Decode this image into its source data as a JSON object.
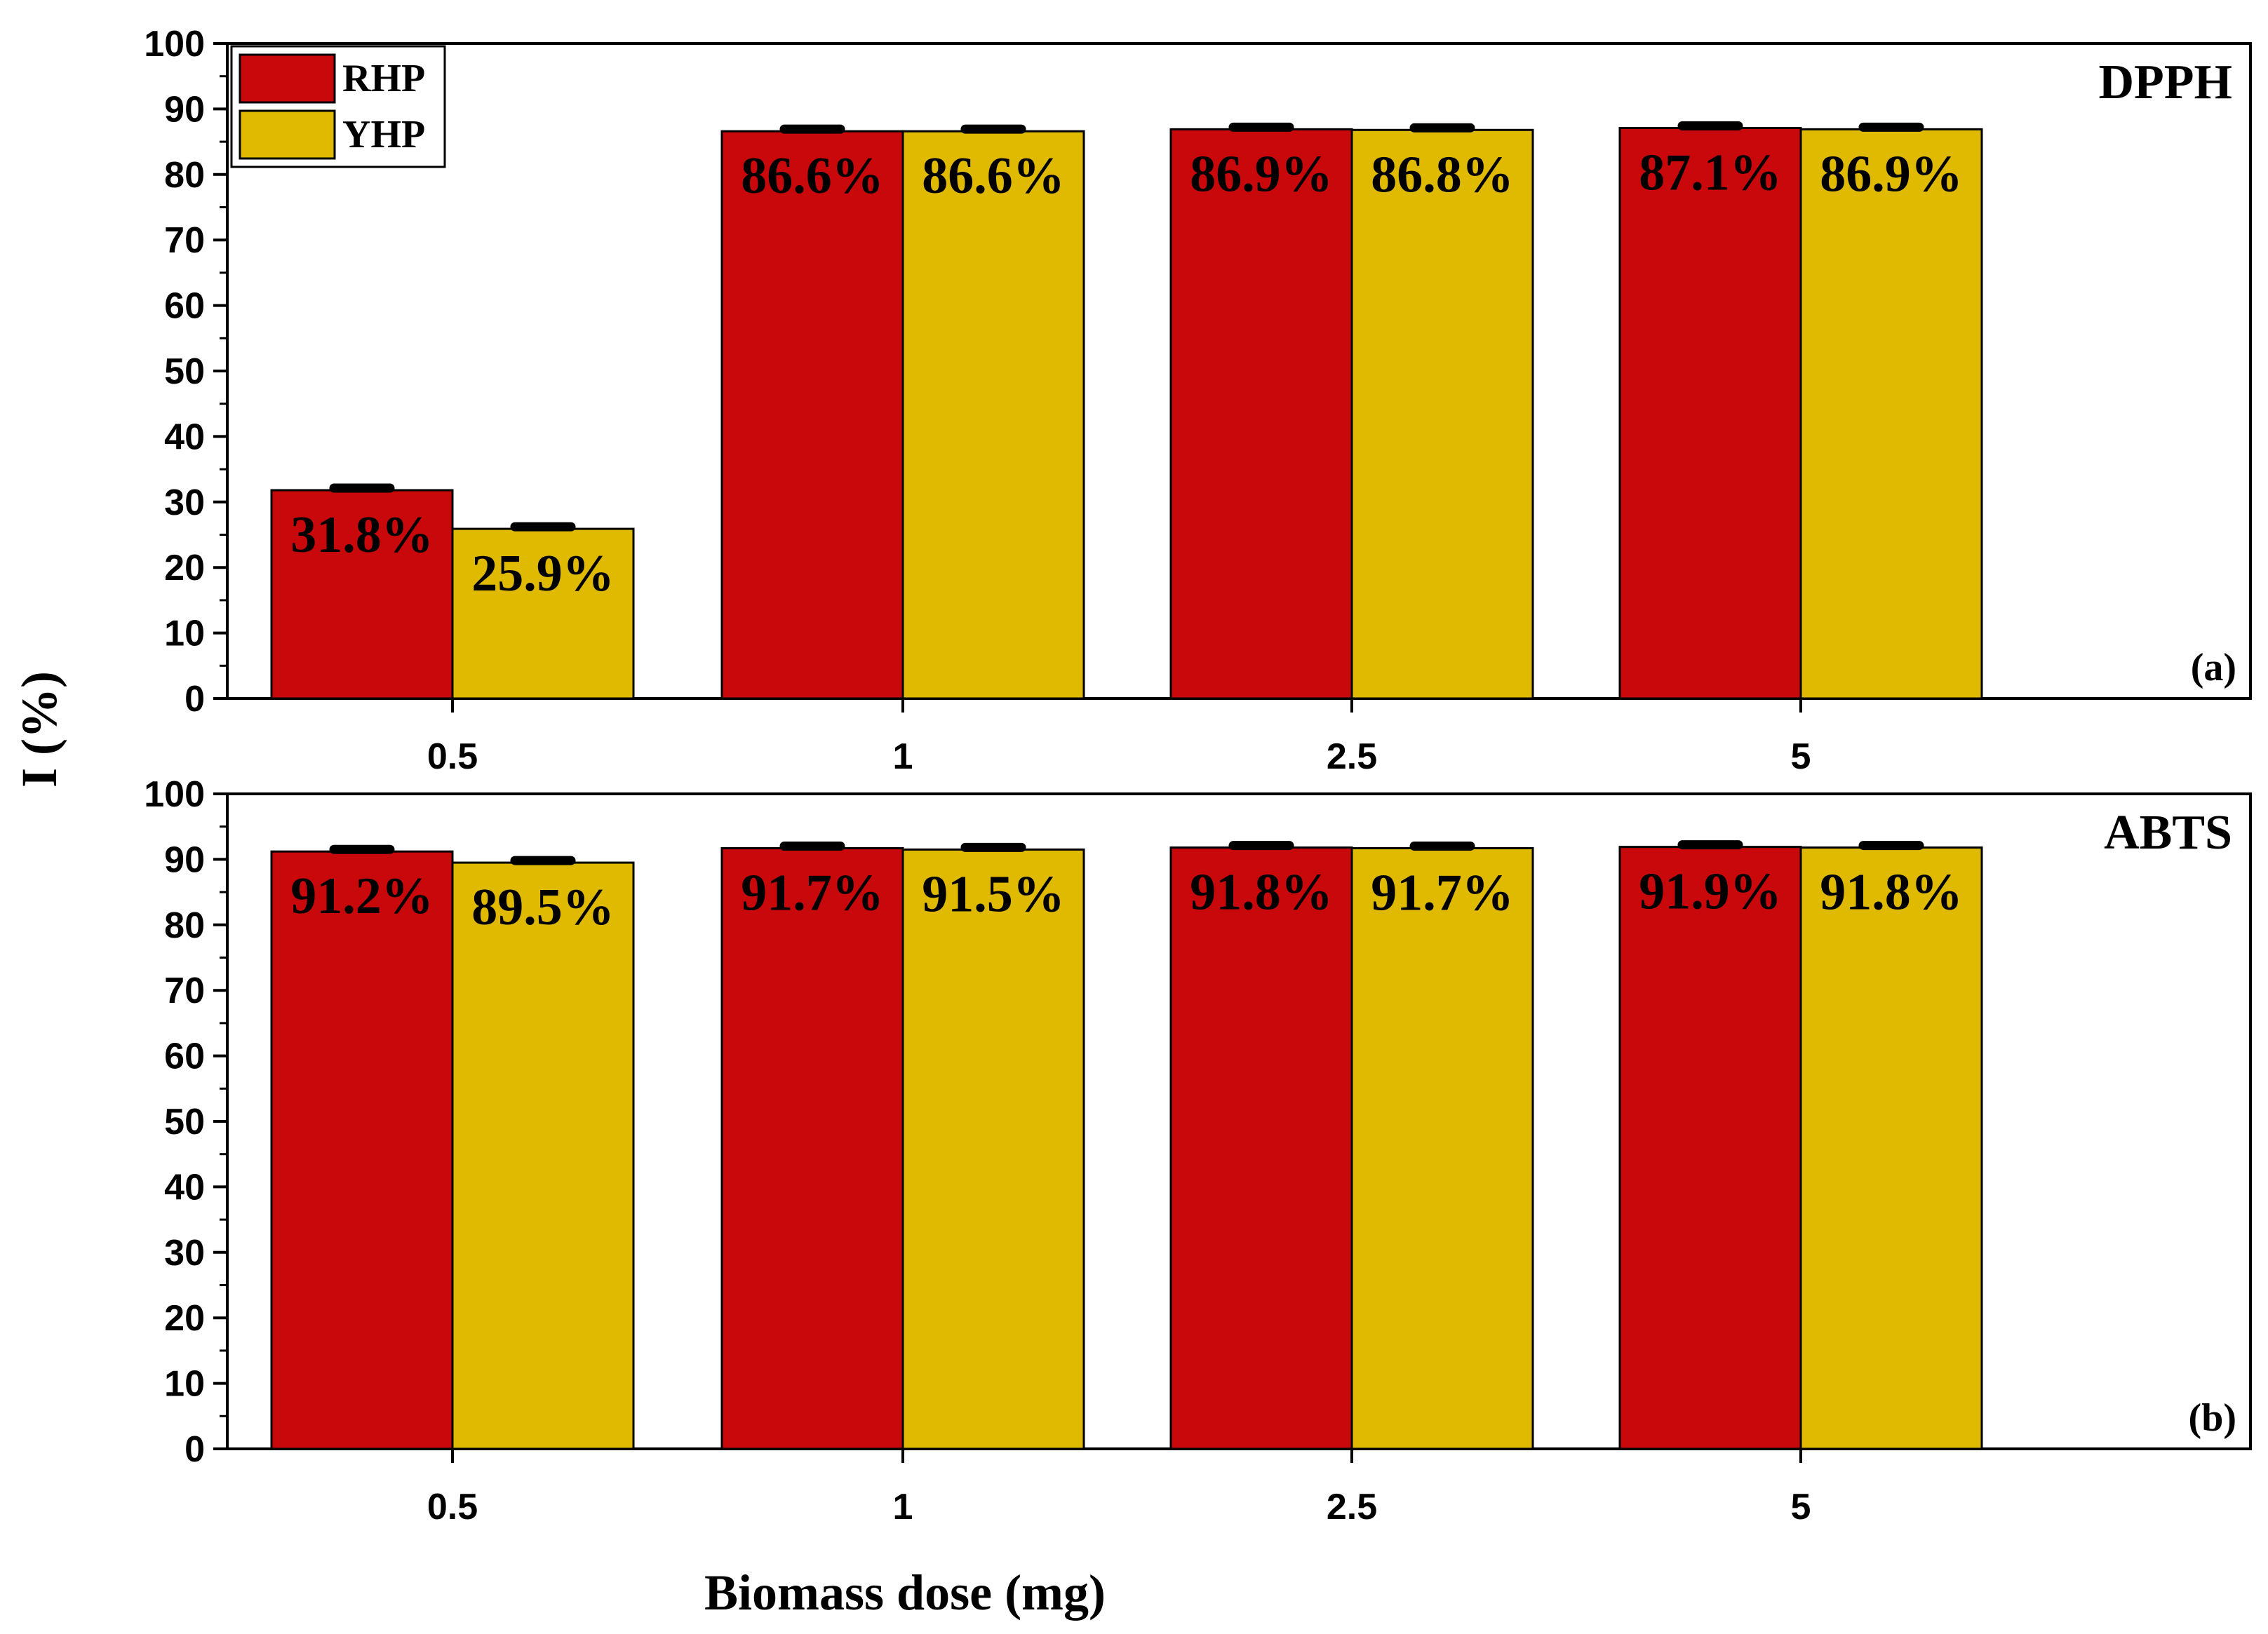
{
  "chart_data": [
    {
      "type": "bar",
      "panel_tag": "(a)",
      "panel_name": "DPPH",
      "categories": [
        "0.5",
        "1",
        "2.5",
        "5"
      ],
      "series": [
        {
          "name": "RHP",
          "color": "#c8080b",
          "values": [
            31.8,
            86.6,
            86.9,
            87.1
          ],
          "labels": [
            "31.8%",
            "86.6%",
            "86.9%",
            "87.1%"
          ]
        },
        {
          "name": "YHP",
          "color": "#dfba00",
          "values": [
            25.9,
            86.6,
            86.8,
            86.9
          ],
          "labels": [
            "25.9%",
            "86.6%",
            "86.8%",
            "86.9%"
          ]
        }
      ],
      "ylim": [
        0,
        100
      ],
      "yticks": [
        "0",
        "10",
        "20",
        "30",
        "40",
        "50",
        "60",
        "70",
        "80",
        "90",
        "100"
      ],
      "ylabel": "I (%)",
      "xlabel": "",
      "legend_position": "top-left"
    },
    {
      "type": "bar",
      "panel_tag": "(b)",
      "panel_name": "ABTS",
      "categories": [
        "0.5",
        "1",
        "2.5",
        "5"
      ],
      "series": [
        {
          "name": "RHP",
          "color": "#c8080b",
          "values": [
            91.2,
            91.7,
            91.8,
            91.9
          ],
          "labels": [
            "91.2%",
            "91.7%",
            "91.8%",
            "91.9%"
          ]
        },
        {
          "name": "YHP",
          "color": "#dfba00",
          "values": [
            89.5,
            91.5,
            91.7,
            91.8
          ],
          "labels": [
            "89.5%",
            "91.5%",
            "91.7%",
            "91.8%"
          ]
        }
      ],
      "ylim": [
        0,
        100
      ],
      "yticks": [
        "0",
        "10",
        "20",
        "30",
        "40",
        "50",
        "60",
        "70",
        "80",
        "90",
        "100"
      ],
      "ylabel": "",
      "xlabel": "Biomass dose (mg)"
    }
  ],
  "ylabel": "I (%)",
  "xlabel": "Biomass dose (mg)",
  "legend": [
    {
      "name": "RHP",
      "color": "#c8080b"
    },
    {
      "name": "YHP",
      "color": "#dfba00"
    }
  ]
}
